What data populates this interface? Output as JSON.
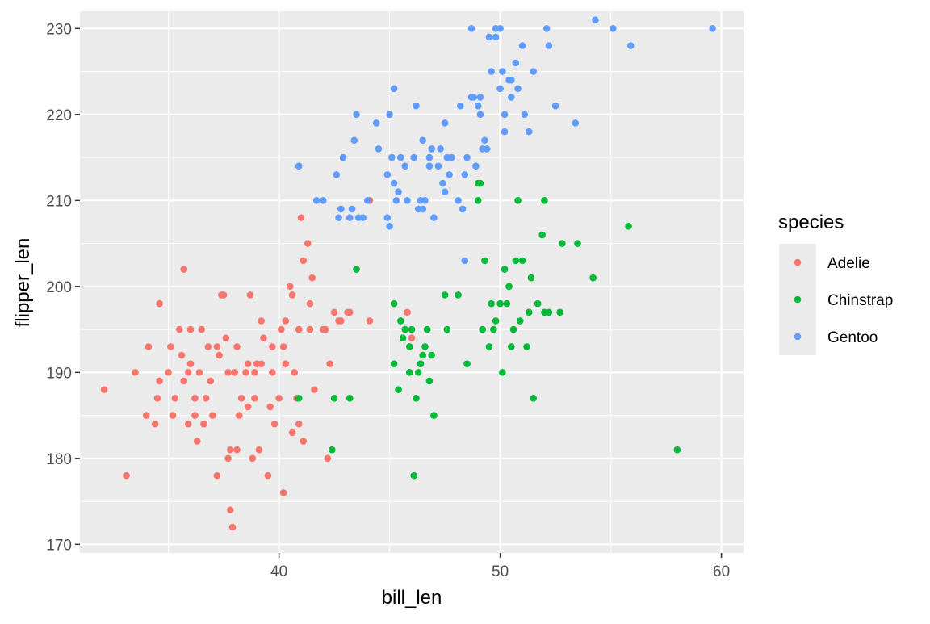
{
  "chart_data": {
    "type": "scatter",
    "xlabel": "bill_len",
    "ylabel": "flipper_len",
    "xlim": [
      31.0,
      61.0
    ],
    "ylim": [
      169.0,
      232.0
    ],
    "x_ticks": [
      40,
      50,
      60
    ],
    "y_ticks": [
      170,
      180,
      190,
      200,
      210,
      220,
      230
    ],
    "grid": true,
    "legend": {
      "title": "species",
      "position": "right"
    },
    "colors": {
      "Adelie": "#F8766D",
      "Chinstrap": "#00BA38",
      "Gentoo": "#619CFF",
      "panel": "#EBEBEB",
      "grid": "#FFFFFF"
    },
    "series": [
      {
        "name": "Adelie",
        "points": [
          [
            32.1,
            188
          ],
          [
            33.1,
            178
          ],
          [
            33.5,
            190
          ],
          [
            34.0,
            185
          ],
          [
            34.1,
            193
          ],
          [
            34.4,
            184
          ],
          [
            34.5,
            187
          ],
          [
            34.6,
            198
          ],
          [
            34.6,
            189
          ],
          [
            35.0,
            190
          ],
          [
            35.1,
            193
          ],
          [
            35.2,
            185
          ],
          [
            35.3,
            187
          ],
          [
            35.5,
            195
          ],
          [
            35.6,
            192
          ],
          [
            35.7,
            189
          ],
          [
            35.7,
            202
          ],
          [
            35.9,
            190
          ],
          [
            36.0,
            195
          ],
          [
            36.0,
            191
          ],
          [
            36.2,
            187
          ],
          [
            36.2,
            185
          ],
          [
            36.4,
            190
          ],
          [
            36.5,
            195
          ],
          [
            36.6,
            184
          ],
          [
            36.7,
            187
          ],
          [
            36.8,
            193
          ],
          [
            36.9,
            189
          ],
          [
            37.0,
            185
          ],
          [
            37.2,
            178
          ],
          [
            37.3,
            192
          ],
          [
            37.4,
            199
          ],
          [
            37.5,
            199
          ],
          [
            37.6,
            194
          ],
          [
            37.7,
            180
          ],
          [
            37.8,
            174
          ],
          [
            37.9,
            172
          ],
          [
            38.0,
            190
          ],
          [
            38.1,
            181
          ],
          [
            38.2,
            185
          ],
          [
            38.3,
            187
          ],
          [
            38.5,
            190
          ],
          [
            38.6,
            191
          ],
          [
            38.7,
            199
          ],
          [
            38.8,
            180
          ],
          [
            38.9,
            190
          ],
          [
            39.0,
            191
          ],
          [
            39.1,
            181
          ],
          [
            39.2,
            196
          ],
          [
            39.3,
            194
          ],
          [
            39.5,
            178
          ],
          [
            39.6,
            186
          ],
          [
            39.7,
            193
          ],
          [
            39.8,
            184
          ],
          [
            40.0,
            187
          ],
          [
            40.1,
            195
          ],
          [
            40.2,
            176
          ],
          [
            40.3,
            191
          ],
          [
            40.5,
            200
          ],
          [
            40.6,
            183
          ],
          [
            40.7,
            190
          ],
          [
            40.8,
            187
          ],
          [
            40.9,
            195
          ],
          [
            41.0,
            208
          ],
          [
            41.1,
            203
          ],
          [
            41.3,
            205
          ],
          [
            41.4,
            198
          ],
          [
            41.5,
            201
          ],
          [
            41.6,
            188
          ],
          [
            42.0,
            195
          ],
          [
            42.1,
            195
          ],
          [
            42.2,
            180
          ],
          [
            42.3,
            191
          ],
          [
            42.5,
            197
          ],
          [
            42.7,
            196
          ],
          [
            42.8,
            196
          ],
          [
            43.1,
            197
          ],
          [
            43.2,
            197
          ],
          [
            44.1,
            210
          ],
          [
            45.8,
            197
          ],
          [
            46.0,
            194
          ],
          [
            44.1,
            196
          ],
          [
            40.9,
            184
          ],
          [
            41.1,
            182
          ],
          [
            36.3,
            182
          ],
          [
            37.8,
            181
          ],
          [
            38.9,
            187
          ],
          [
            39.7,
            190
          ],
          [
            40.6,
            199
          ],
          [
            35.9,
            184
          ],
          [
            37.2,
            193
          ],
          [
            38.1,
            193
          ],
          [
            39.2,
            191
          ],
          [
            40.2,
            193
          ],
          [
            41.4,
            195
          ],
          [
            36.6,
            184
          ],
          [
            37.7,
            190
          ],
          [
            38.6,
            186
          ],
          [
            40.3,
            196
          ]
        ]
      },
      {
        "name": "Chinstrap",
        "points": [
          [
            40.9,
            187
          ],
          [
            42.4,
            181
          ],
          [
            42.5,
            187
          ],
          [
            43.2,
            187
          ],
          [
            43.5,
            202
          ],
          [
            45.2,
            198
          ],
          [
            45.2,
            191
          ],
          [
            45.4,
            188
          ],
          [
            45.5,
            196
          ],
          [
            45.6,
            194
          ],
          [
            45.7,
            195
          ],
          [
            45.9,
            190
          ],
          [
            46.0,
            195
          ],
          [
            46.1,
            178
          ],
          [
            46.2,
            187
          ],
          [
            46.4,
            191
          ],
          [
            46.5,
            192
          ],
          [
            46.6,
            193
          ],
          [
            46.7,
            195
          ],
          [
            46.8,
            189
          ],
          [
            46.9,
            192
          ],
          [
            47.0,
            185
          ],
          [
            47.5,
            199
          ],
          [
            47.6,
            195
          ],
          [
            48.1,
            199
          ],
          [
            48.5,
            191
          ],
          [
            49.0,
            210
          ],
          [
            49.1,
            212
          ],
          [
            49.2,
            195
          ],
          [
            49.3,
            203
          ],
          [
            49.5,
            193
          ],
          [
            49.6,
            198
          ],
          [
            49.7,
            195
          ],
          [
            49.8,
            196
          ],
          [
            50.0,
            198
          ],
          [
            50.1,
            190
          ],
          [
            50.2,
            202
          ],
          [
            50.3,
            198
          ],
          [
            50.5,
            193
          ],
          [
            50.6,
            195
          ],
          [
            50.7,
            203
          ],
          [
            50.8,
            210
          ],
          [
            50.9,
            196
          ],
          [
            51.0,
            203
          ],
          [
            51.3,
            197
          ],
          [
            51.4,
            201
          ],
          [
            51.5,
            187
          ],
          [
            51.7,
            198
          ],
          [
            51.9,
            206
          ],
          [
            52.0,
            210
          ],
          [
            52.2,
            197
          ],
          [
            52.7,
            197
          ],
          [
            52.8,
            205
          ],
          [
            53.5,
            205
          ],
          [
            54.2,
            201
          ],
          [
            55.8,
            207
          ],
          [
            58.0,
            181
          ],
          [
            49.0,
            212
          ],
          [
            50.4,
            200
          ],
          [
            51.2,
            193
          ],
          [
            52.0,
            197
          ],
          [
            46.3,
            190
          ],
          [
            45.9,
            193
          ]
        ]
      },
      {
        "name": "Gentoo",
        "points": [
          [
            40.9,
            214
          ],
          [
            41.7,
            210
          ],
          [
            42.0,
            210
          ],
          [
            42.6,
            213
          ],
          [
            42.7,
            208
          ],
          [
            42.8,
            209
          ],
          [
            42.9,
            215
          ],
          [
            43.2,
            208
          ],
          [
            43.3,
            209
          ],
          [
            43.4,
            217
          ],
          [
            43.5,
            220
          ],
          [
            43.6,
            208
          ],
          [
            43.8,
            208
          ],
          [
            44.0,
            210
          ],
          [
            44.4,
            219
          ],
          [
            44.5,
            216
          ],
          [
            44.9,
            213
          ],
          [
            45.0,
            220
          ],
          [
            45.1,
            215
          ],
          [
            45.2,
            212
          ],
          [
            45.3,
            210
          ],
          [
            45.4,
            211
          ],
          [
            45.5,
            215
          ],
          [
            45.7,
            214
          ],
          [
            45.8,
            210
          ],
          [
            46.1,
            215
          ],
          [
            46.2,
            221
          ],
          [
            46.3,
            209
          ],
          [
            46.4,
            210
          ],
          [
            46.5,
            217
          ],
          [
            46.6,
            210
          ],
          [
            46.8,
            215
          ],
          [
            46.9,
            216
          ],
          [
            47.2,
            214
          ],
          [
            47.3,
            216
          ],
          [
            47.4,
            212
          ],
          [
            47.5,
            219
          ],
          [
            47.6,
            215
          ],
          [
            47.7,
            213
          ],
          [
            47.8,
            215
          ],
          [
            48.1,
            210
          ],
          [
            48.2,
            221
          ],
          [
            48.4,
            213
          ],
          [
            48.5,
            215
          ],
          [
            48.7,
            222
          ],
          [
            48.8,
            222
          ],
          [
            49.0,
            221
          ],
          [
            49.1,
            220
          ],
          [
            49.2,
            216
          ],
          [
            49.3,
            217
          ],
          [
            49.4,
            216
          ],
          [
            49.5,
            229
          ],
          [
            49.6,
            225
          ],
          [
            49.8,
            229
          ],
          [
            50.0,
            223
          ],
          [
            50.1,
            225
          ],
          [
            50.2,
            218
          ],
          [
            50.4,
            224
          ],
          [
            50.5,
            222
          ],
          [
            50.7,
            226
          ],
          [
            50.8,
            223
          ],
          [
            51.1,
            220
          ],
          [
            51.3,
            218
          ],
          [
            51.5,
            225
          ],
          [
            52.1,
            230
          ],
          [
            52.2,
            228
          ],
          [
            52.5,
            221
          ],
          [
            53.4,
            219
          ],
          [
            54.3,
            231
          ],
          [
            55.1,
            230
          ],
          [
            55.9,
            228
          ],
          [
            59.6,
            230
          ],
          [
            48.4,
            203
          ],
          [
            45.2,
            223
          ],
          [
            44.9,
            208
          ],
          [
            45.0,
            207
          ],
          [
            46.5,
            209
          ],
          [
            47.0,
            208
          ],
          [
            48.3,
            209
          ],
          [
            49.8,
            230
          ],
          [
            48.7,
            230
          ],
          [
            50.0,
            230
          ],
          [
            51.0,
            228
          ],
          [
            50.5,
            224
          ],
          [
            49.1,
            222
          ],
          [
            46.8,
            214
          ],
          [
            47.5,
            211
          ],
          [
            48.9,
            214
          ],
          [
            50.2,
            220
          ]
        ]
      }
    ]
  }
}
